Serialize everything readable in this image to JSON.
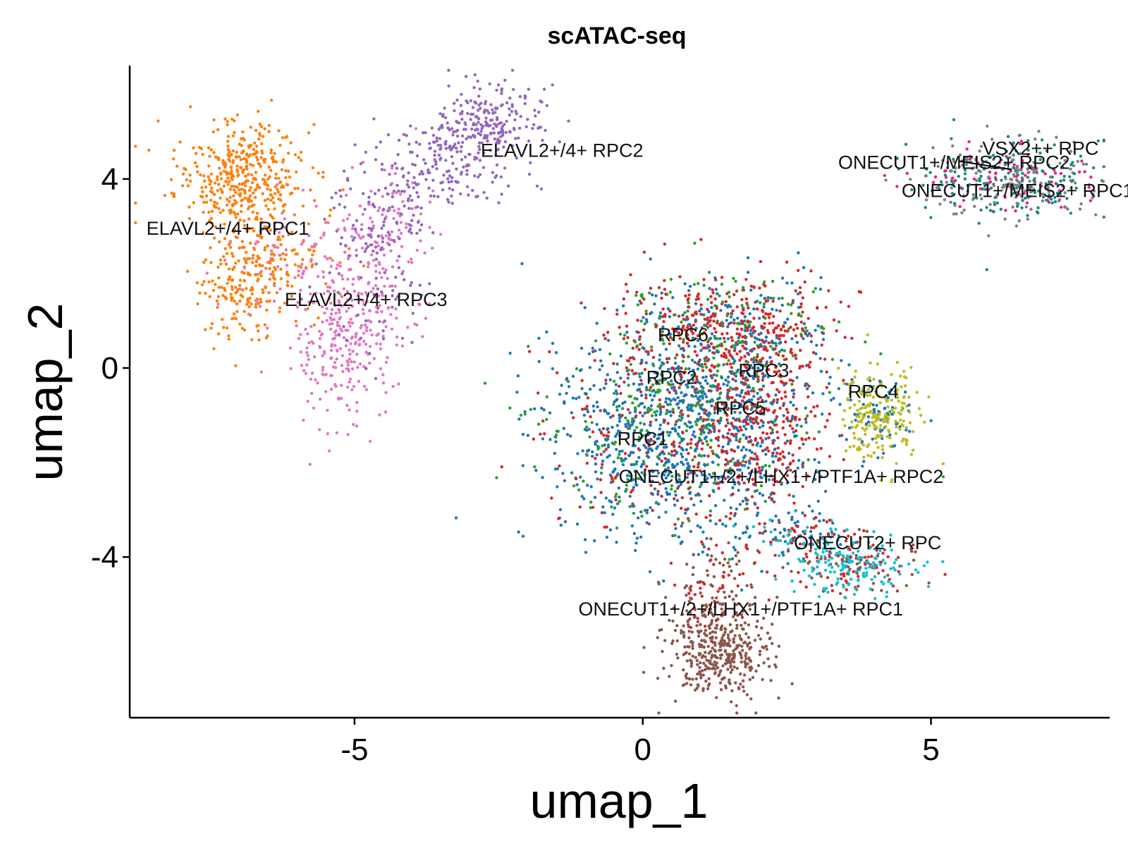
{
  "chart_data": {
    "type": "scatter",
    "title": "scATAC-seq",
    "xlabel": "umap_1",
    "ylabel": "umap_2",
    "xlim": [
      -8.9,
      8.1
    ],
    "ylim": [
      -7.4,
      6.4
    ],
    "xticks": [
      -5,
      0,
      5
    ],
    "xtick_labels": [
      "-5",
      "0",
      "5"
    ],
    "yticks": [
      -4,
      0,
      4
    ],
    "ytick_labels": [
      "-4",
      "0",
      "4"
    ],
    "grid": false,
    "legend": "none",
    "colors": {
      "orange": "#ff7f0e",
      "purple": "#9467bd",
      "pink": "#e377c2",
      "blue": "#1f77b4",
      "red": "#d62728",
      "green": "#2ca02c",
      "olive": "#bcbd22",
      "cyan": "#17becf",
      "brown": "#8c564b",
      "gray": "#7f7f7f",
      "teal": "#1a8a80",
      "magenta": "#f01a96"
    },
    "clusters": [
      {
        "cx": -7.0,
        "cy": 4.0,
        "sx": 0.55,
        "sy": 0.6,
        "n": 420,
        "colors": [
          "#ff7f0e"
        ]
      },
      {
        "cx": -6.5,
        "cy": 2.3,
        "sx": 0.6,
        "sy": 0.5,
        "n": 180,
        "colors": [
          "#ff7f0e",
          "#ff7f0e",
          "#e377c2"
        ]
      },
      {
        "cx": -7.0,
        "cy": 1.5,
        "sx": 0.4,
        "sy": 0.45,
        "n": 120,
        "colors": [
          "#ff7f0e"
        ]
      },
      {
        "cx": -5.2,
        "cy": 0.6,
        "sx": 0.45,
        "sy": 0.9,
        "n": 260,
        "colors": [
          "#e377c2"
        ]
      },
      {
        "cx": -4.6,
        "cy": 2.0,
        "sx": 0.5,
        "sy": 0.9,
        "n": 180,
        "colors": [
          "#e377c2",
          "#e377c2",
          "#9467bd"
        ]
      },
      {
        "cx": -2.7,
        "cy": 5.2,
        "sx": 0.45,
        "sy": 0.4,
        "n": 220,
        "colors": [
          "#9467bd"
        ]
      },
      {
        "cx": -3.4,
        "cy": 4.2,
        "sx": 0.6,
        "sy": 0.5,
        "n": 160,
        "colors": [
          "#9467bd"
        ]
      },
      {
        "cx": -4.5,
        "cy": 3.2,
        "sx": 0.35,
        "sy": 0.6,
        "n": 140,
        "colors": [
          "#9467bd",
          "#9467bd",
          "#e377c2"
        ]
      },
      {
        "cx": 0.5,
        "cy": -1.3,
        "sx": 1.1,
        "sy": 1.1,
        "n": 1300,
        "colors": [
          "#1f77b4",
          "#1f77b4",
          "#1f77b4",
          "#2ca02c",
          "#d62728"
        ]
      },
      {
        "cx": 1.5,
        "cy": 0.8,
        "sx": 0.9,
        "sy": 0.6,
        "n": 600,
        "colors": [
          "#d62728",
          "#d62728",
          "#1f77b4",
          "#2ca02c"
        ]
      },
      {
        "cx": 2.0,
        "cy": -1.2,
        "sx": 0.5,
        "sy": 1.1,
        "n": 420,
        "colors": [
          "#d62728",
          "#d62728",
          "#1f77b4"
        ]
      },
      {
        "cx": 4.1,
        "cy": -1.0,
        "sx": 0.35,
        "sy": 0.45,
        "n": 280,
        "colors": [
          "#bcbd22",
          "#bcbd22",
          "#bcbd22",
          "#1f77b4"
        ]
      },
      {
        "cx": 1.3,
        "cy": -6.0,
        "sx": 0.45,
        "sy": 0.5,
        "n": 380,
        "colors": [
          "#8c564b"
        ]
      },
      {
        "cx": 1.2,
        "cy": -4.8,
        "sx": 0.4,
        "sy": 0.6,
        "n": 120,
        "colors": [
          "#8c564b",
          "#8c564b",
          "#d62728"
        ]
      },
      {
        "cx": 3.7,
        "cy": -4.2,
        "sx": 0.55,
        "sy": 0.3,
        "n": 260,
        "colors": [
          "#17becf",
          "#17becf",
          "#d62728",
          "#8c564b"
        ]
      },
      {
        "cx": 2.7,
        "cy": -3.5,
        "sx": 0.5,
        "sy": 0.25,
        "n": 120,
        "colors": [
          "#d62728",
          "#17becf",
          "#1f77b4"
        ]
      },
      {
        "cx": 6.4,
        "cy": 4.0,
        "sx": 0.75,
        "sy": 0.4,
        "n": 420,
        "colors": [
          "#7f7f7f",
          "#7f7f7f",
          "#1a8a80",
          "#1a8a80",
          "#f01a96"
        ]
      }
    ],
    "annotations": [
      {
        "text": "ELAVL2+/4+ RPC2",
        "x": -1.4,
        "y": 4.6
      },
      {
        "text": "ELAVL2+/4+ RPC1",
        "x": -7.2,
        "y": 2.95
      },
      {
        "text": "ELAVL2+/4+ RPC3",
        "x": -4.8,
        "y": 1.45
      },
      {
        "text": "VSX2++ RPC",
        "x": 6.9,
        "y": 4.65
      },
      {
        "text": "ONECUT1+/MEIS2+ RPC2",
        "x": 5.4,
        "y": 4.35
      },
      {
        "text": "ONECUT1+/MEIS2+ RPC1",
        "x": 6.5,
        "y": 3.75
      },
      {
        "text": "RPC6",
        "x": 0.7,
        "y": 0.7
      },
      {
        "text": "RPC2",
        "x": 0.5,
        "y": -0.2
      },
      {
        "text": "RPC3",
        "x": 2.1,
        "y": -0.05
      },
      {
        "text": "RPC4",
        "x": 4.0,
        "y": -0.5
      },
      {
        "text": "RPC5",
        "x": 1.7,
        "y": -0.85
      },
      {
        "text": "RPC1",
        "x": 0.0,
        "y": -1.5
      },
      {
        "text": "ONECUT1+/2+/LHX1+/PTF1A+ RPC2",
        "x": 2.4,
        "y": -2.3
      },
      {
        "text": "ONECUT2+ RPC",
        "x": 3.9,
        "y": -3.7
      },
      {
        "text": "ONECUT1+/2+/LHX1+/PTF1A+ RPC1",
        "x": 1.7,
        "y": -5.1
      }
    ]
  }
}
